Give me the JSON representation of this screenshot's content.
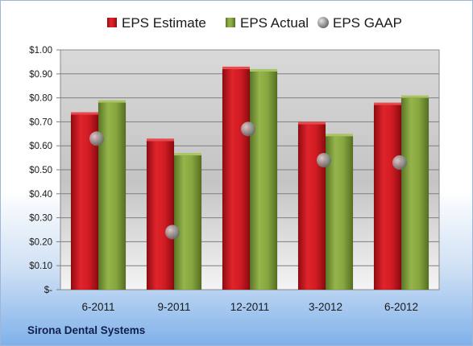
{
  "chart_data": {
    "type": "bar",
    "categories": [
      "6-2011",
      "9-2011",
      "12-2011",
      "3-2012",
      "6-2012"
    ],
    "series": [
      {
        "name": "EPS Estimate",
        "kind": "bar",
        "color": "#c0141b",
        "values": [
          0.73,
          0.62,
          0.92,
          0.69,
          0.77
        ]
      },
      {
        "name": "EPS Actual",
        "kind": "bar",
        "color": "#7b9a35",
        "values": [
          0.78,
          0.56,
          0.91,
          0.64,
          0.8
        ]
      },
      {
        "name": "EPS GAAP",
        "kind": "marker",
        "color": "#8c8c8c",
        "values": [
          0.63,
          0.24,
          0.67,
          0.54,
          0.53
        ]
      }
    ],
    "yticks": [
      "$-",
      "$0.10",
      "$0.20",
      "$0.30",
      "$0.40",
      "$0.50",
      "$0.60",
      "$0.70",
      "$0.80",
      "$0.90",
      "$1.00"
    ],
    "ylim": [
      0,
      1.0
    ],
    "grid": true,
    "legend": "top"
  },
  "footer_text": "Sirona Dental Systems"
}
